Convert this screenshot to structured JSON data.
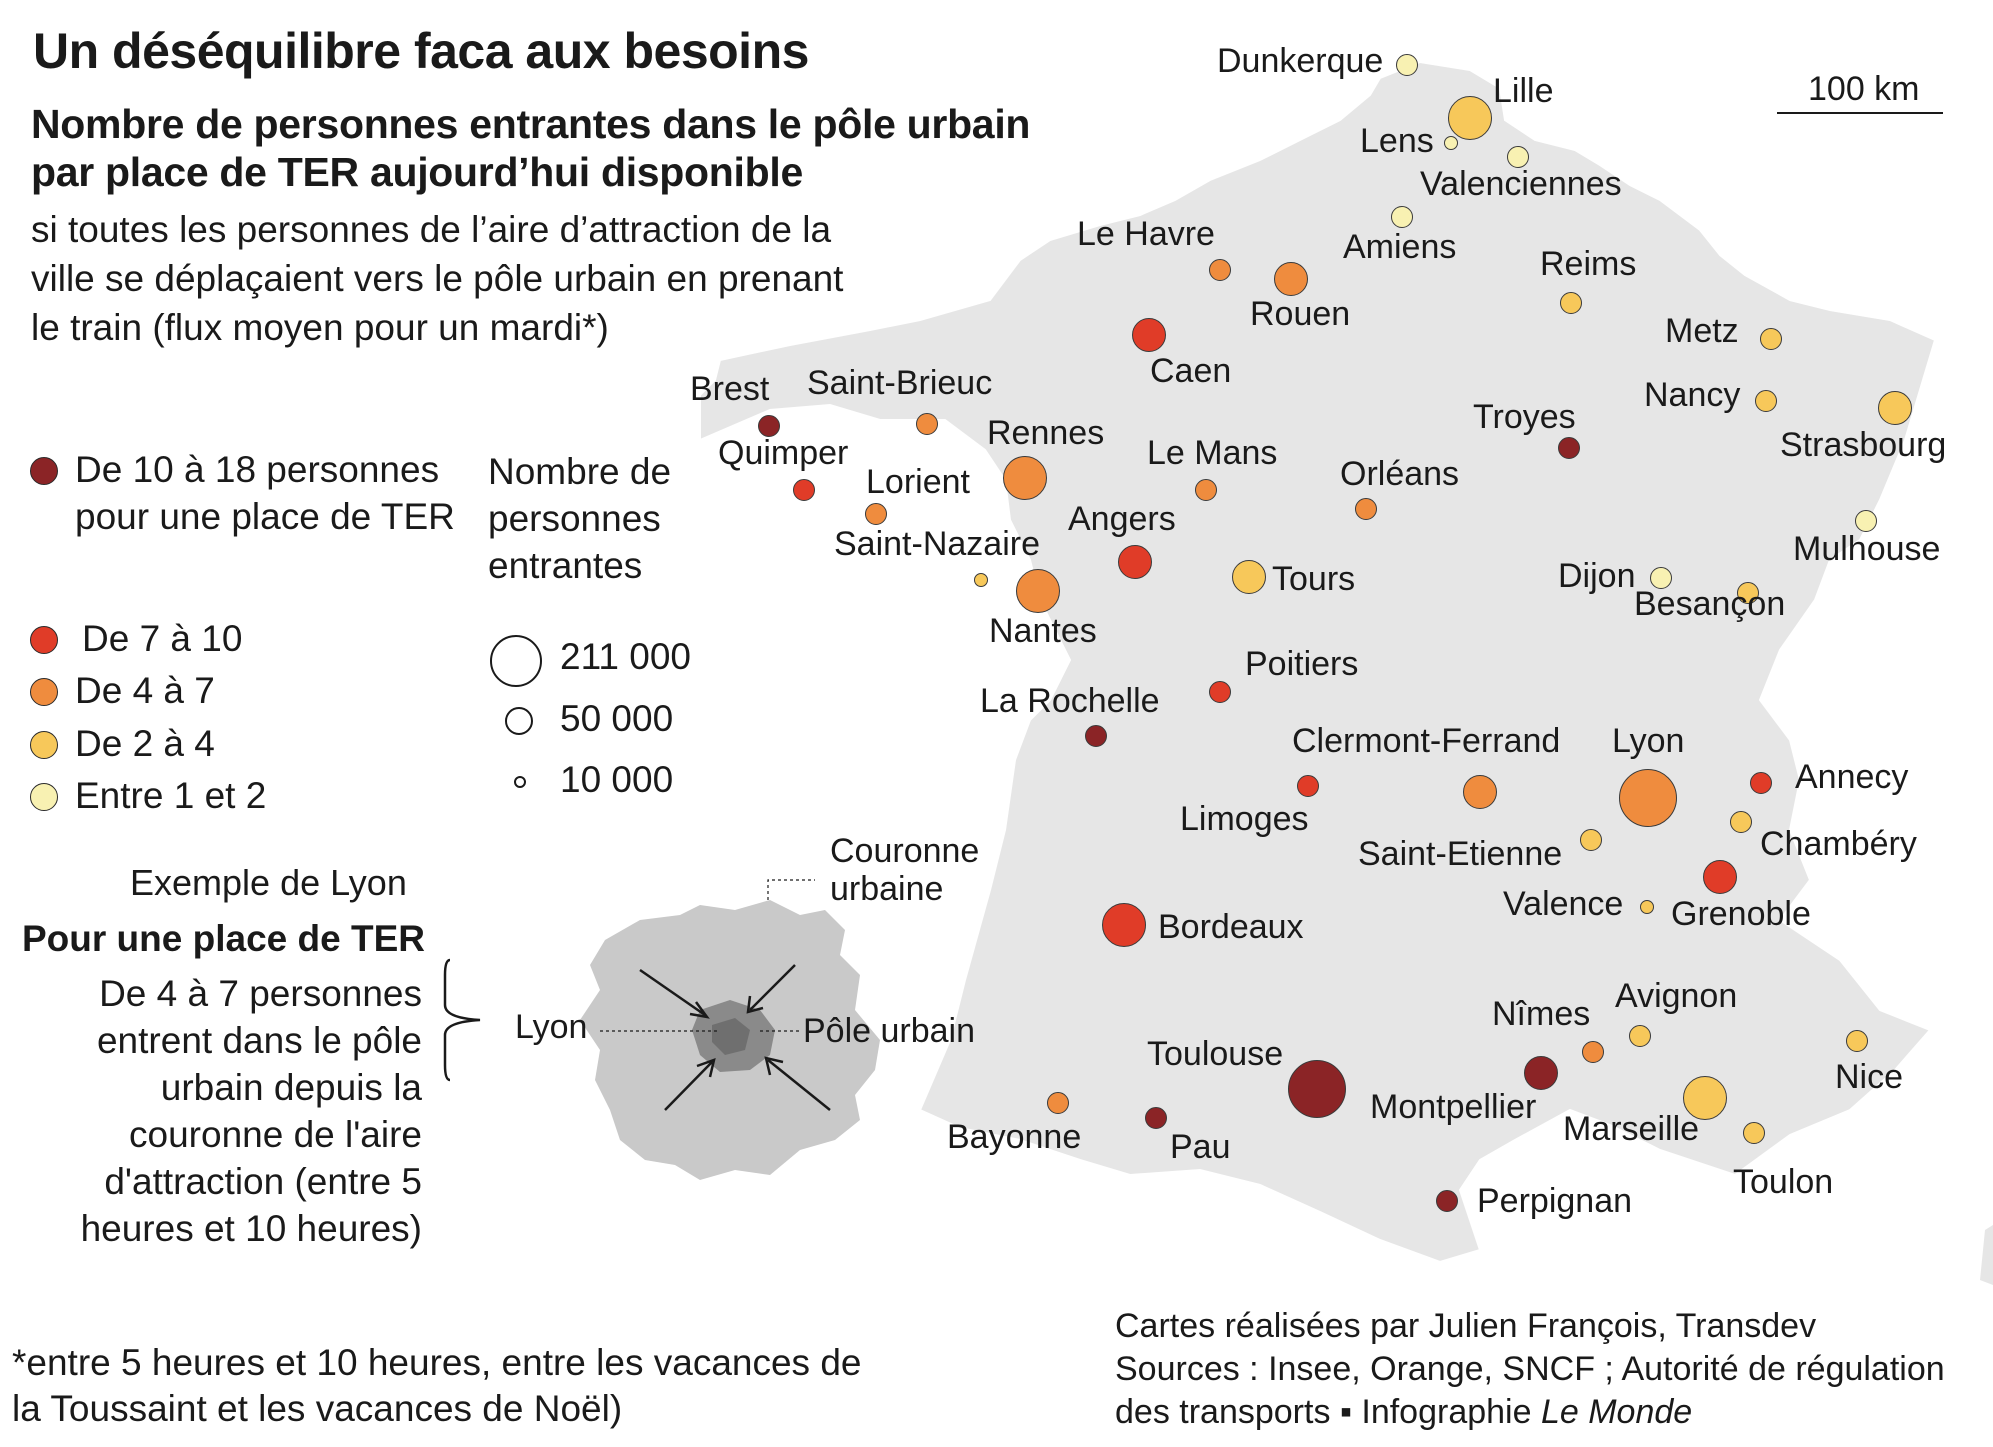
{
  "title": "Un déséquilibre faca aux besoins",
  "subtitle": "Nombre de personnes entrantes dans le pôle urbain par place de TER aujourd’hui disponible",
  "description": "si toutes les personnes de l’aire d’attraction de la ville se déplaçaient vers le pôle urbain en prenant le train (flux moyen pour un mardi*)",
  "colors": {
    "c10_18": "#8b2426",
    "c7_10": "#e03c28",
    "c4_7": "#ef8c3e",
    "c2_4": "#f7c85a",
    "c1_2": "#f8f1b2",
    "land": "#e6e6e6",
    "lyon_couronne": "#c9c9c9",
    "lyon_pole": "#8a8a8a"
  },
  "legend": {
    "classes": [
      {
        "label": "De 10 à 18 personnes pour une place de TER",
        "color": "#8b2426"
      },
      {
        "label": "De 7 à 10",
        "color": "#e03c28"
      },
      {
        "label": "De 4 à 7",
        "color": "#ef8c3e"
      },
      {
        "label": "De 2 à 4",
        "color": "#f7c85a"
      },
      {
        "label": "Entre 1 et 2",
        "color": "#f8f1b2"
      }
    ],
    "size_title": "Nombre de personnes entrantes",
    "sizes": [
      {
        "label": "211 000",
        "value": 211000
      },
      {
        "label": "50 000",
        "value": 50000
      },
      {
        "label": "10 000",
        "value": 10000
      }
    ]
  },
  "lyon_example": {
    "heading": "Exemple de Lyon",
    "bold": "Pour une place de TER",
    "text": "De 4 à 7 personnes entrent dans le pôle urbain depuis la couronne de l'aire d'attraction (entre 5 heures et 10 heures)",
    "label_couronne": "Couronne urbaine",
    "label_lyon": "Lyon",
    "label_pole": "Pôle urbain"
  },
  "scale": "100 km",
  "cities": [
    {
      "name": "Dunkerque",
      "cls": "1-2",
      "size": "s"
    },
    {
      "name": "Lille",
      "cls": "2-4",
      "size": "l"
    },
    {
      "name": "Lens",
      "cls": "1-2",
      "size": "xs"
    },
    {
      "name": "Valenciennes",
      "cls": "1-2",
      "size": "s"
    },
    {
      "name": "Amiens",
      "cls": "1-2",
      "size": "s"
    },
    {
      "name": "Le Havre",
      "cls": "4-7",
      "size": "s"
    },
    {
      "name": "Rouen",
      "cls": "4-7",
      "size": "m"
    },
    {
      "name": "Reims",
      "cls": "2-4",
      "size": "s"
    },
    {
      "name": "Metz",
      "cls": "2-4",
      "size": "s"
    },
    {
      "name": "Caen",
      "cls": "7-10",
      "size": "m"
    },
    {
      "name": "Brest",
      "cls": "10-18",
      "size": "s"
    },
    {
      "name": "Saint-Brieuc",
      "cls": "4-7",
      "size": "s"
    },
    {
      "name": "Troyes",
      "cls": "10-18",
      "size": "s"
    },
    {
      "name": "Nancy",
      "cls": "2-4",
      "size": "s"
    },
    {
      "name": "Strasbourg",
      "cls": "2-4",
      "size": "m"
    },
    {
      "name": "Quimper",
      "cls": "7-10",
      "size": "s"
    },
    {
      "name": "Rennes",
      "cls": "4-7",
      "size": "l"
    },
    {
      "name": "Le Mans",
      "cls": "4-7",
      "size": "s"
    },
    {
      "name": "Orléans",
      "cls": "4-7",
      "size": "s"
    },
    {
      "name": "Lorient",
      "cls": "4-7",
      "size": "s"
    },
    {
      "name": "Angers",
      "cls": "7-10",
      "size": "m"
    },
    {
      "name": "Mulhouse",
      "cls": "1-2",
      "size": "s"
    },
    {
      "name": "Saint-Nazaire",
      "cls": "2-4",
      "size": "xs"
    },
    {
      "name": "Tours",
      "cls": "2-4",
      "size": "m"
    },
    {
      "name": "Dijon",
      "cls": "1-2",
      "size": "s"
    },
    {
      "name": "Besançon",
      "cls": "2-4",
      "size": "s"
    },
    {
      "name": "Nantes",
      "cls": "4-7",
      "size": "l"
    },
    {
      "name": "Poitiers",
      "cls": "7-10",
      "size": "s"
    },
    {
      "name": "La Rochelle",
      "cls": "10-18",
      "size": "s"
    },
    {
      "name": "Clermont-Ferrand",
      "cls": "4-7",
      "size": "m"
    },
    {
      "name": "Lyon",
      "cls": "4-7",
      "size": "xl"
    },
    {
      "name": "Annecy",
      "cls": "7-10",
      "size": "s"
    },
    {
      "name": "Limoges",
      "cls": "7-10",
      "size": "s"
    },
    {
      "name": "Chambéry",
      "cls": "2-4",
      "size": "s"
    },
    {
      "name": "Saint-Etienne",
      "cls": "2-4",
      "size": "s"
    },
    {
      "name": "Grenoble",
      "cls": "7-10",
      "size": "m"
    },
    {
      "name": "Valence",
      "cls": "2-4",
      "size": "xs"
    },
    {
      "name": "Bordeaux",
      "cls": "7-10",
      "size": "l"
    },
    {
      "name": "Nîmes",
      "cls": "4-7",
      "size": "s"
    },
    {
      "name": "Avignon",
      "cls": "2-4",
      "size": "s"
    },
    {
      "name": "Toulouse",
      "cls": "10-18",
      "size": "xl"
    },
    {
      "name": "Montpellier",
      "cls": "10-18",
      "size": "m"
    },
    {
      "name": "Nice",
      "cls": "2-4",
      "size": "s"
    },
    {
      "name": "Marseille",
      "cls": "2-4",
      "size": "l"
    },
    {
      "name": "Bayonne",
      "cls": "4-7",
      "size": "s"
    },
    {
      "name": "Pau",
      "cls": "10-18",
      "size": "s"
    },
    {
      "name": "Toulon",
      "cls": "2-4",
      "size": "s"
    },
    {
      "name": "Perpignan",
      "cls": "10-18",
      "size": "s"
    }
  ],
  "footnote": "*entre 5 heures et 10 heures, entre les vacances de la Toussaint et les vacances de Noël)",
  "credits": {
    "line1": "Cartes réalisées par Julien François, Transdev",
    "line2": "Sources : Insee, Orange, SNCF ; Autorité de régulation",
    "line3": "des transports ▪ Infographie ",
    "line3_italic": "Le Monde"
  }
}
